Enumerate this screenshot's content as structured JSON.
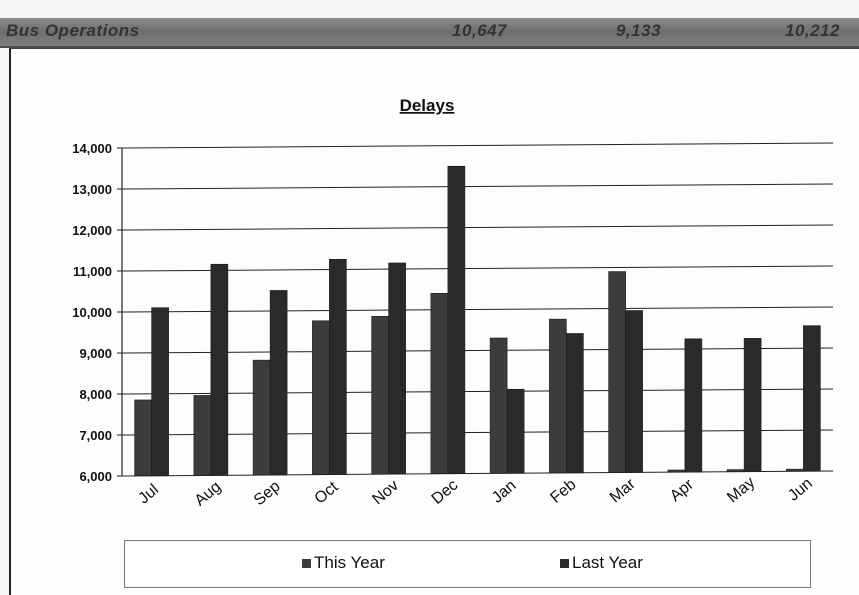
{
  "header": {
    "title": "Bus Operations",
    "value_1": "10,647",
    "value_2": "9,133",
    "value_3": "10,212"
  },
  "chart_data": {
    "type": "bar",
    "title": "Delays",
    "xlabel": "",
    "ylabel": "",
    "ylim": [
      6000,
      14000
    ],
    "yticks": [
      "6,000",
      "7,000",
      "8,000",
      "9,000",
      "10,000",
      "11,000",
      "12,000",
      "13,000",
      "14,000"
    ],
    "categories": [
      "Jul",
      "Aug",
      "Sep",
      "Oct",
      "Nov",
      "Dec",
      "Jan",
      "Feb",
      "Mar",
      "Apr",
      "May",
      "Jun"
    ],
    "series": [
      {
        "name": "This Year",
        "values": [
          7850,
          7950,
          8800,
          9750,
          9850,
          10400,
          9300,
          9750,
          10900,
          6050,
          6050,
          6050
        ]
      },
      {
        "name": "Last Year",
        "values": [
          10100,
          11150,
          10500,
          11250,
          11150,
          13500,
          8050,
          9400,
          9950,
          9250,
          9250,
          9550
        ]
      }
    ],
    "grid": true,
    "legend_position": "bottom",
    "colors": {
      "this_year": "#3c3c3c",
      "last_year": "#2a2a2a",
      "grid": "#222222"
    }
  }
}
